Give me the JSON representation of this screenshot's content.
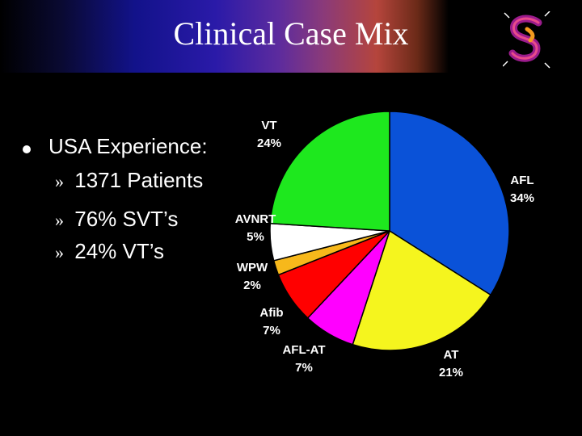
{
  "slide": {
    "title": "Clinical Case Mix",
    "bullets": {
      "main": "USA Experience:",
      "sub_marker": "»",
      "subs": [
        "1371 Patients",
        "76% SVT’s",
        "24% VT’s"
      ]
    },
    "logo_icon": "swirl-s-logo-icon"
  },
  "chart_data": {
    "type": "pie",
    "title": "",
    "series": [
      {
        "slices": [
          {
            "label": "AFL",
            "pct_label": "34%",
            "value": 34,
            "color": "#0a52d8"
          },
          {
            "label": "AT",
            "pct_label": "21%",
            "value": 21,
            "color": "#f5f51e"
          },
          {
            "label": "AFL-AT",
            "pct_label": "7%",
            "value": 7,
            "color": "#ff00ff"
          },
          {
            "label": "Afib",
            "pct_label": "7%",
            "value": 7,
            "color": "#ff0000"
          },
          {
            "label": "WPW",
            "pct_label": "2%",
            "value": 2,
            "color": "#f7b81b"
          },
          {
            "label": "AVNRT",
            "pct_label": "5%",
            "value": 5,
            "color": "#ffffff"
          },
          {
            "label": "VT",
            "pct_label": "24%",
            "value": 24,
            "color": "#1ee81e"
          }
        ]
      }
    ]
  }
}
